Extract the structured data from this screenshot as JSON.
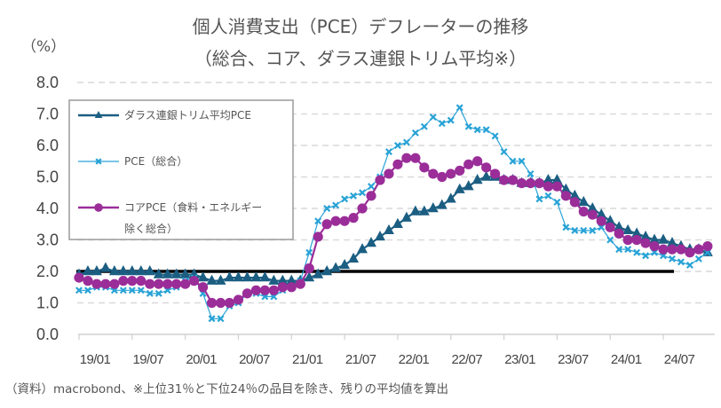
{
  "chart_data": {
    "type": "line",
    "title": "個人消費支出（PCE）デフレーターの推移",
    "subtitle": "（総合、コア、ダラス連銀トリム平均※）",
    "ylabel": "（%）",
    "xlabel": "",
    "ylim": [
      0,
      8
    ],
    "yticks": [
      "0.0",
      "1.0",
      "2.0",
      "3.0",
      "4.0",
      "5.0",
      "6.0",
      "7.0",
      "8.0"
    ],
    "xticks": [
      "19/01",
      "19/07",
      "20/01",
      "20/07",
      "21/01",
      "21/07",
      "22/01",
      "22/07",
      "23/01",
      "23/07",
      "24/01",
      "24/07"
    ],
    "x_start": "2019/01",
    "x_end": "2024/12",
    "grid": true,
    "reference_line": 2.0,
    "legend_position": "top-left",
    "series": [
      {
        "name": "ダラス連銀トリム平均PCE",
        "legend_lines": [
          "ダラス連銀トリム平均PCE"
        ],
        "color": "#1b5e82",
        "marker": "triangle",
        "values": [
          1.9,
          2.0,
          2.0,
          2.1,
          2.0,
          2.0,
          2.0,
          2.0,
          2.0,
          1.9,
          1.9,
          1.9,
          1.9,
          1.9,
          1.8,
          1.7,
          1.7,
          1.8,
          1.8,
          1.8,
          1.8,
          1.8,
          1.7,
          1.7,
          1.7,
          1.7,
          1.8,
          1.9,
          2.0,
          2.1,
          2.2,
          2.4,
          2.7,
          2.9,
          3.1,
          3.3,
          3.5,
          3.7,
          3.9,
          3.9,
          4.0,
          4.1,
          4.3,
          4.6,
          4.7,
          4.9,
          5.0,
          5.0,
          4.9,
          4.9,
          4.8,
          4.8,
          4.8,
          4.9,
          4.9,
          4.6,
          4.4,
          4.2,
          4.0,
          3.8,
          3.6,
          3.4,
          3.3,
          3.2,
          3.1,
          3.0,
          3.0,
          2.9,
          2.8,
          2.7,
          2.7,
          2.6
        ]
      },
      {
        "name": "PCE（総合）",
        "legend_lines": [
          "PCE（総合）"
        ],
        "color": "#29a3d6",
        "marker": "x",
        "values": [
          1.4,
          1.4,
          1.5,
          1.5,
          1.4,
          1.4,
          1.4,
          1.4,
          1.3,
          1.3,
          1.4,
          1.5,
          1.7,
          1.8,
          1.3,
          0.5,
          0.5,
          0.9,
          1.0,
          1.3,
          1.3,
          1.2,
          1.2,
          1.4,
          1.5,
          1.7,
          2.6,
          3.6,
          4.0,
          4.1,
          4.3,
          4.4,
          4.5,
          4.7,
          5.0,
          5.8,
          6.0,
          6.1,
          6.4,
          6.6,
          6.9,
          6.7,
          6.8,
          7.2,
          6.6,
          6.5,
          6.5,
          6.3,
          5.8,
          5.5,
          5.5,
          5.1,
          4.3,
          4.4,
          4.2,
          3.4,
          3.3,
          3.3,
          3.3,
          3.4,
          3.0,
          2.7,
          2.7,
          2.6,
          2.5,
          2.6,
          2.5,
          2.4,
          2.3,
          2.2,
          2.4,
          2.6
        ]
      },
      {
        "name": "コアPCE（食料・エネルギー除く総合）",
        "legend_lines": [
          "コアPCE（食料・エネルギー",
          "除く総合）"
        ],
        "color": "#9b2d99",
        "marker": "circle",
        "values": [
          1.8,
          1.7,
          1.6,
          1.6,
          1.6,
          1.7,
          1.7,
          1.7,
          1.6,
          1.6,
          1.6,
          1.6,
          1.6,
          1.7,
          1.5,
          1.0,
          1.0,
          1.0,
          1.1,
          1.3,
          1.4,
          1.4,
          1.4,
          1.5,
          1.5,
          1.6,
          2.1,
          3.1,
          3.5,
          3.6,
          3.6,
          3.7,
          4.0,
          4.4,
          4.9,
          5.1,
          5.4,
          5.6,
          5.6,
          5.3,
          5.1,
          5.0,
          5.1,
          5.2,
          5.4,
          5.5,
          5.3,
          5.1,
          4.9,
          4.9,
          4.8,
          4.8,
          4.8,
          4.7,
          4.7,
          4.4,
          4.2,
          3.9,
          3.8,
          3.6,
          3.4,
          3.2,
          3.0,
          3.0,
          2.9,
          2.8,
          2.7,
          2.7,
          2.7,
          2.6,
          2.7,
          2.8
        ]
      }
    ]
  },
  "source_note": "（資料）macrobond、※上位31％と下位24％の品目を除き、残りの平均値を算出"
}
